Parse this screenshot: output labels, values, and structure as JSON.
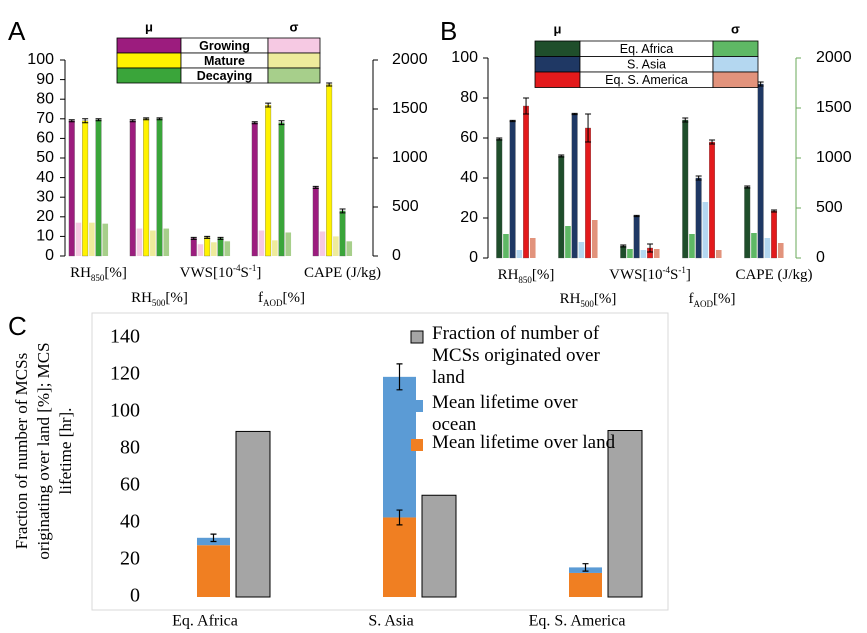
{
  "chart_data": [
    {
      "type": "bar",
      "panel_label": "A",
      "categories": [
        [
          "RH",
          {
            "sub": "850"
          },
          "[%]"
        ],
        [
          "RH",
          {
            "sub": "500"
          },
          "[%]"
        ],
        [
          "VWS[10",
          {
            "sup": "-4"
          },
          "S",
          {
            "sup": "-1"
          },
          "]"
        ],
        [
          "f",
          {
            "sub": "AOD"
          },
          "[%]"
        ],
        [
          "CAPE (J/kg)"
        ]
      ],
      "category_axis": [
        "y",
        "y",
        "y",
        "y",
        "y2"
      ],
      "ylim": [
        0,
        100
      ],
      "yticks": [
        0,
        10,
        20,
        30,
        40,
        50,
        60,
        70,
        80,
        90,
        100
      ],
      "y2lim": [
        0,
        2000
      ],
      "y2ticks": [
        0,
        500,
        1000,
        1500,
        2000
      ],
      "legend_headers": [
        "μ",
        "σ"
      ],
      "series": [
        {
          "name": "Growing",
          "color": "#9c1c7e",
          "sd_color": "#f6c9e3",
          "values": [
            69,
            69,
            9,
            68,
            700
          ],
          "errors": [
            0.5,
            0.5,
            0.5,
            0.5,
            10
          ],
          "sd_values": [
            17,
            14,
            6,
            13,
            250
          ]
        },
        {
          "name": "Mature",
          "color": "#fff200",
          "sd_color": "#eeeb9c",
          "values": [
            69,
            70,
            9.5,
            77,
            1750
          ],
          "errors": [
            1,
            0.5,
            0.5,
            1,
            15
          ],
          "sd_values": [
            17,
            13,
            7,
            8,
            200
          ]
        },
        {
          "name": "Decaying",
          "color": "#3aa53a",
          "sd_color": "#a7cf8b",
          "values": [
            69.5,
            70,
            9,
            68,
            460
          ],
          "errors": [
            0.5,
            0.5,
            0.5,
            1,
            20
          ],
          "sd_values": [
            16.5,
            14,
            7.5,
            12,
            150
          ]
        }
      ]
    },
    {
      "type": "bar",
      "panel_label": "B",
      "categories": [
        [
          "RH",
          {
            "sub": "850"
          },
          "[%]"
        ],
        [
          "RH",
          {
            "sub": "500"
          },
          "[%]"
        ],
        [
          "VWS[10",
          {
            "sup": "-4"
          },
          "S",
          {
            "sup": "-1"
          },
          "]"
        ],
        [
          "f",
          {
            "sub": "AOD"
          },
          "[%]"
        ],
        [
          "CAPE (J/kg)"
        ]
      ],
      "category_axis": [
        "y",
        "y",
        "y",
        "y",
        "y2"
      ],
      "ylim": [
        0,
        100
      ],
      "yticks": [
        0,
        20,
        40,
        60,
        80,
        100
      ],
      "y2lim": [
        0,
        2000
      ],
      "y2ticks": [
        0,
        500,
        1000,
        1500,
        2000
      ],
      "y2_axis_color": "#6aa85a",
      "legend_headers": [
        "μ",
        "σ"
      ],
      "series": [
        {
          "name": "Eq. Africa",
          "color": "#1f4e2b",
          "sd_color": "#5fb865",
          "values": [
            59.5,
            51,
            6,
            69,
            710
          ],
          "errors": [
            0.5,
            0.5,
            0.5,
            1,
            10
          ],
          "sd_values": [
            12,
            16,
            4.5,
            12,
            250
          ]
        },
        {
          "name": "S. Asia",
          "color": "#1f3864",
          "sd_color": "#b4d7f0",
          "values": [
            68.5,
            72,
            21,
            40,
            1740
          ],
          "errors": [
            0.3,
            0.3,
            0.3,
            1,
            20
          ],
          "sd_values": [
            4,
            8,
            4,
            28,
            200
          ]
        },
        {
          "name": "Eq. S. America",
          "color": "#e31a1c",
          "sd_color": "#e2937c",
          "values": [
            76,
            65,
            5,
            58,
            470
          ],
          "errors": [
            4,
            7,
            2,
            1,
            10
          ],
          "sd_values": [
            10,
            19,
            4.5,
            4,
            150
          ]
        }
      ]
    },
    {
      "type": "stacked-bar",
      "panel_label": "C",
      "y_label": "Fraction of  number of MCSs originating over land [%]; MCS lifetime [hr].",
      "categories": [
        "Eq. Africa",
        "S. Asia",
        "Eq. S. America"
      ],
      "ylim": [
        0,
        140
      ],
      "yticks": [
        0,
        20,
        40,
        60,
        80,
        100,
        120,
        140
      ],
      "series": [
        {
          "name": "Mean lifetime over land",
          "color": "#f07f22",
          "stack": "lifetime",
          "values": [
            28,
            43,
            13
          ],
          "errors": [
            null,
            4,
            null
          ]
        },
        {
          "name": "Mean lifetime over ocean",
          "color": "#5b9bd5",
          "stack": "lifetime",
          "values": [
            4,
            76,
            3
          ],
          "errors": [
            2,
            7,
            2
          ]
        },
        {
          "name": "Fraction of number of MCSs originated over land",
          "color": "#a5a5a5",
          "values": [
            89.5,
            55,
            90
          ]
        }
      ]
    }
  ]
}
